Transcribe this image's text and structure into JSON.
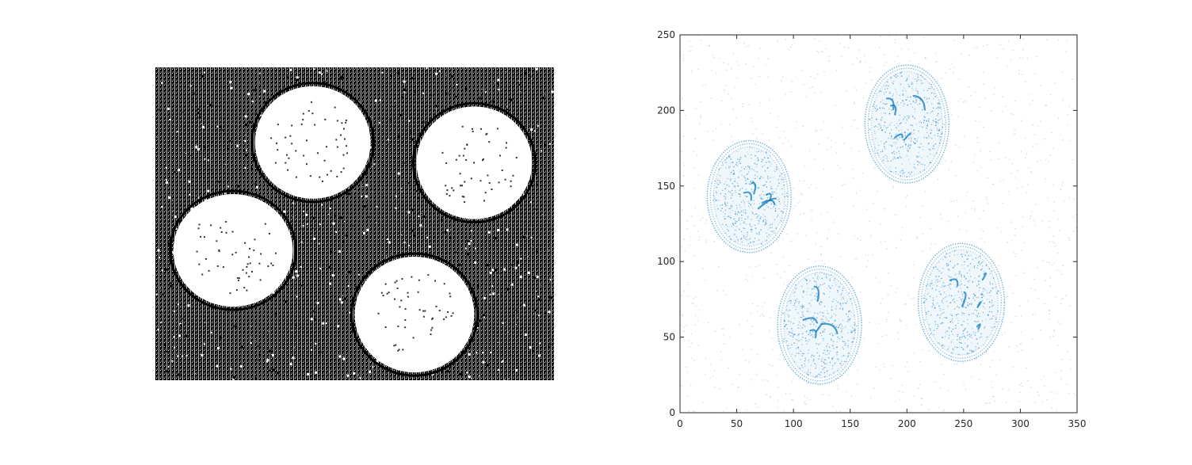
{
  "chart_data": [
    {
      "type": "image",
      "colormap": "binary",
      "axes_visible": false,
      "objects": [
        {
          "label": "coin",
          "cx": 0.395,
          "cy": 0.24,
          "rx": 0.145,
          "ry": 0.18
        },
        {
          "label": "coin",
          "cx": 0.8,
          "cy": 0.305,
          "rx": 0.145,
          "ry": 0.18
        },
        {
          "label": "coin",
          "cx": 0.195,
          "cy": 0.585,
          "rx": 0.15,
          "ry": 0.18
        },
        {
          "label": "coin",
          "cx": 0.65,
          "cy": 0.79,
          "rx": 0.15,
          "ry": 0.185
        }
      ]
    },
    {
      "type": "scatter",
      "color": "#0072BD",
      "xlim": [
        0,
        350
      ],
      "ylim": [
        0,
        250
      ],
      "xticks": [
        0,
        50,
        100,
        150,
        200,
        250,
        300,
        350
      ],
      "yticks": [
        0,
        50,
        100,
        150,
        200,
        250
      ],
      "grid": false,
      "series": [
        {
          "shape": "ellipse-ring",
          "center": [
            61,
            143
          ],
          "radii": [
            37,
            37
          ]
        },
        {
          "shape": "ellipse-ring",
          "center": [
            200,
            191
          ],
          "radii": [
            37,
            39
          ]
        },
        {
          "shape": "ellipse-ring",
          "center": [
            123,
            58
          ],
          "radii": [
            37,
            39
          ]
        },
        {
          "shape": "ellipse-ring",
          "center": [
            248,
            73
          ],
          "radii": [
            38,
            39
          ]
        }
      ]
    }
  ]
}
